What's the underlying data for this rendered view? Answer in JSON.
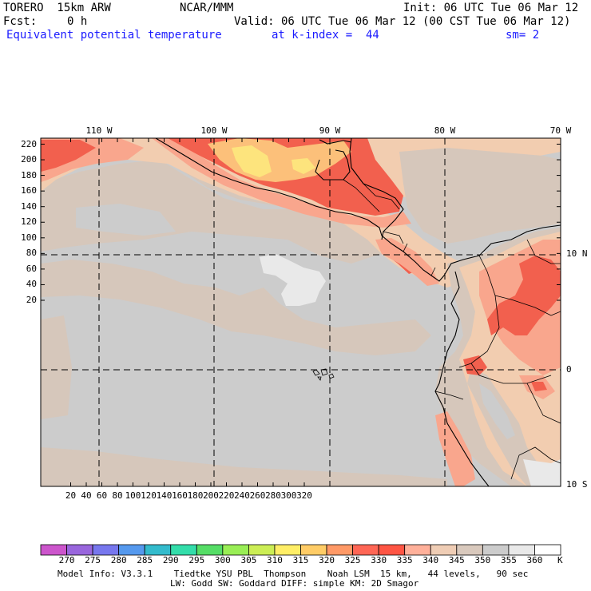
{
  "header": {
    "model": "TORERO  15km ARW",
    "org": "NCAR/MMM",
    "init": "Init: 06 UTC Tue 06 Mar 12",
    "fcst_label": "Fcst:",
    "fcst_value": "0 h",
    "valid": "Valid: 06 UTC Tue 06 Mar 12 (00 CST Tue 06 Mar 12)",
    "field": "Equivalent potential temperature",
    "level": "at k-index =  44",
    "smooth": "sm= 2"
  },
  "axes": {
    "top_lon": [
      "110 W",
      "100 W",
      "90 W",
      "80 W",
      "70 W"
    ],
    "right_lat": [
      "10 N",
      "0",
      "10 S"
    ],
    "left_grid": [
      "220",
      "200",
      "180",
      "160",
      "140",
      "120",
      "100",
      "80",
      "60",
      "40",
      "20"
    ],
    "bottom_grid": [
      "20",
      "40",
      "60",
      "80",
      "100",
      "120",
      "140",
      "160",
      "180",
      "200",
      "220",
      "240",
      "260",
      "280",
      "300",
      "320"
    ]
  },
  "colorbar": {
    "labels": [
      "270",
      "275",
      "280",
      "285",
      "290",
      "295",
      "300",
      "305",
      "310",
      "315",
      "320",
      "325",
      "330",
      "335",
      "340",
      "345",
      "350",
      "355",
      "360"
    ],
    "unit": "K",
    "colors": [
      "#cc55cc",
      "#9966dd",
      "#7777ee",
      "#5599ee",
      "#33bbcc",
      "#33ddaa",
      "#55dd66",
      "#99ee55",
      "#ccee55",
      "#ffee66",
      "#ffcc66",
      "#ff9966",
      "#ff6655",
      "#ff5544",
      "#ffb09a",
      "#efcdb5",
      "#d9c9bd",
      "#cccccc",
      "#e9e9e9",
      "#ffffff"
    ]
  },
  "footer": {
    "line1": "Model Info: V3.3.1    Tiedtke YSU PBL  Thompson    Noah LSM  15 km,   44 levels,   90 sec",
    "line2": "LW: Godd SW: Goddard DIFF: simple KM: 2D Smagor"
  },
  "map_colors": {
    "ocean_gray": "#cccccc",
    "tan": "#d6c7bb",
    "peach": "#f2cdb0",
    "salmon": "#f9a68d",
    "red": "#f2604e",
    "orange": "#fcc07a",
    "yellow": "#fde47d",
    "light": "#e9e9e9"
  }
}
